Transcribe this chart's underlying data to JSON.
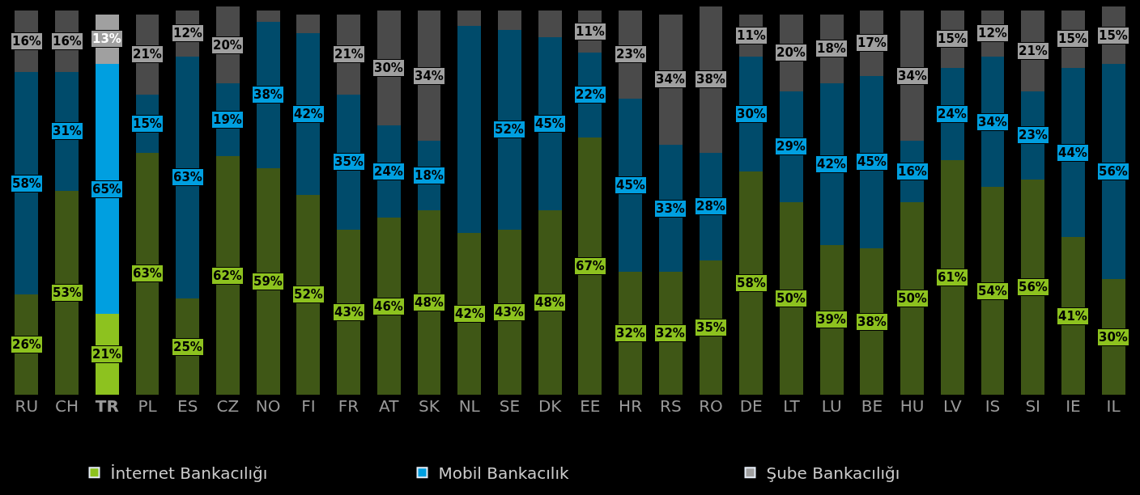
{
  "chart_data": {
    "type": "bar",
    "stacked": true,
    "legend": "bottom",
    "grid": false,
    "categories": [
      "RU",
      "CH",
      "TR",
      "PL",
      "ES",
      "CZ",
      "NO",
      "FI",
      "FR",
      "AT",
      "SK",
      "NL",
      "SE",
      "DK",
      "EE",
      "HR",
      "RS",
      "RO",
      "DE",
      "LT",
      "LU",
      "BE",
      "HU",
      "LV",
      "IS",
      "SI",
      "IE",
      "IL"
    ],
    "series": [
      {
        "name": "İnternet Bankacılığı",
        "color": "#8dc21f",
        "colors": [
          "#3f5716",
          "#3f5716",
          "#8dc21f",
          "#3f5716",
          "#3f5716",
          "#3f5716",
          "#3f5716",
          "#3f5716",
          "#3f5716",
          "#3f5716",
          "#3f5716",
          "#3f5716",
          "#3f5716",
          "#3f5716",
          "#3f5716",
          "#3f5716",
          "#3f5716",
          "#3f5716",
          "#3f5716",
          "#3f5716",
          "#3f5716",
          "#3f5716",
          "#3f5716",
          "#3f5716",
          "#3f5716",
          "#3f5716",
          "#3f5716",
          "#3f5716"
        ],
        "values": [
          26,
          53,
          21,
          63,
          25,
          62,
          59,
          52,
          43,
          46,
          48,
          42,
          43,
          48,
          67,
          32,
          32,
          35,
          58,
          50,
          39,
          38,
          50,
          61,
          54,
          56,
          41,
          30
        ],
        "value_labels": [
          "26%",
          "53%",
          "21%",
          "63%",
          "25%",
          "62%",
          "59%",
          "52%",
          "43%",
          "46%",
          "48%",
          "42%",
          "43%",
          "48%",
          "67%",
          "32%",
          "32%",
          "35%",
          "58%",
          "50%",
          "39%",
          "38%",
          "50%",
          "61%",
          "54%",
          "56%",
          "41%",
          "30%"
        ]
      },
      {
        "name": "Mobil Bankacılık",
        "color": "#009fe0",
        "colors": [
          "#004b6b",
          "#004b6b",
          "#009fe0",
          "#004b6b",
          "#004b6b",
          "#004b6b",
          "#004b6b",
          "#004b6b",
          "#004b6b",
          "#004b6b",
          "#004b6b",
          "#004b6b",
          "#004b6b",
          "#004b6b",
          "#004b6b",
          "#004b6b",
          "#004b6b",
          "#004b6b",
          "#004b6b",
          "#004b6b",
          "#004b6b",
          "#004b6b",
          "#004b6b",
          "#004b6b",
          "#004b6b",
          "#004b6b",
          "#004b6b",
          "#004b6b"
        ],
        "values": [
          58,
          31,
          65,
          15,
          63,
          19,
          38,
          42,
          35,
          24,
          18,
          54,
          52,
          45,
          22,
          45,
          33,
          28,
          30,
          29,
          42,
          45,
          16,
          24,
          34,
          23,
          44,
          56
        ],
        "value_labels": [
          "58%",
          "31%",
          "65%",
          "15%",
          "63%",
          "19%",
          "38%",
          "42%",
          "35%",
          "24%",
          "18%",
          null,
          "52%",
          "45%",
          "22%",
          "45%",
          "33%",
          "28%",
          "30%",
          "29%",
          "42%",
          "45%",
          "16%",
          "24%",
          "34%",
          "23%",
          "44%",
          "56%"
        ]
      },
      {
        "name": "Şube Bankacılığı",
        "color": "#a0a0a0",
        "colors": [
          "#4a4a4a",
          "#4a4a4a",
          "#a0a0a0",
          "#4a4a4a",
          "#4a4a4a",
          "#4a4a4a",
          "#4a4a4a",
          "#4a4a4a",
          "#4a4a4a",
          "#4a4a4a",
          "#4a4a4a",
          "#4a4a4a",
          "#4a4a4a",
          "#4a4a4a",
          "#4a4a4a",
          "#4a4a4a",
          "#4a4a4a",
          "#4a4a4a",
          "#4a4a4a",
          "#4a4a4a",
          "#4a4a4a",
          "#4a4a4a",
          "#4a4a4a",
          "#4a4a4a",
          "#4a4a4a",
          "#4a4a4a",
          "#4a4a4a",
          "#4a4a4a"
        ],
        "values": [
          16,
          16,
          13,
          21,
          12,
          20,
          3,
          5,
          21,
          30,
          34,
          4,
          5,
          7,
          11,
          23,
          34,
          38,
          11,
          20,
          18,
          17,
          34,
          15,
          12,
          21,
          15,
          15
        ],
        "value_labels": [
          "16%",
          "16%",
          "13%",
          "21%",
          "12%",
          "20%",
          null,
          null,
          "21%",
          "30%",
          "34%",
          null,
          null,
          null,
          "11%",
          "23%",
          "34%",
          "38%",
          "11%",
          "20%",
          "18%",
          "17%",
          "34%",
          "15%",
          "12%",
          "21%",
          "15%",
          "15%"
        ]
      }
    ]
  }
}
